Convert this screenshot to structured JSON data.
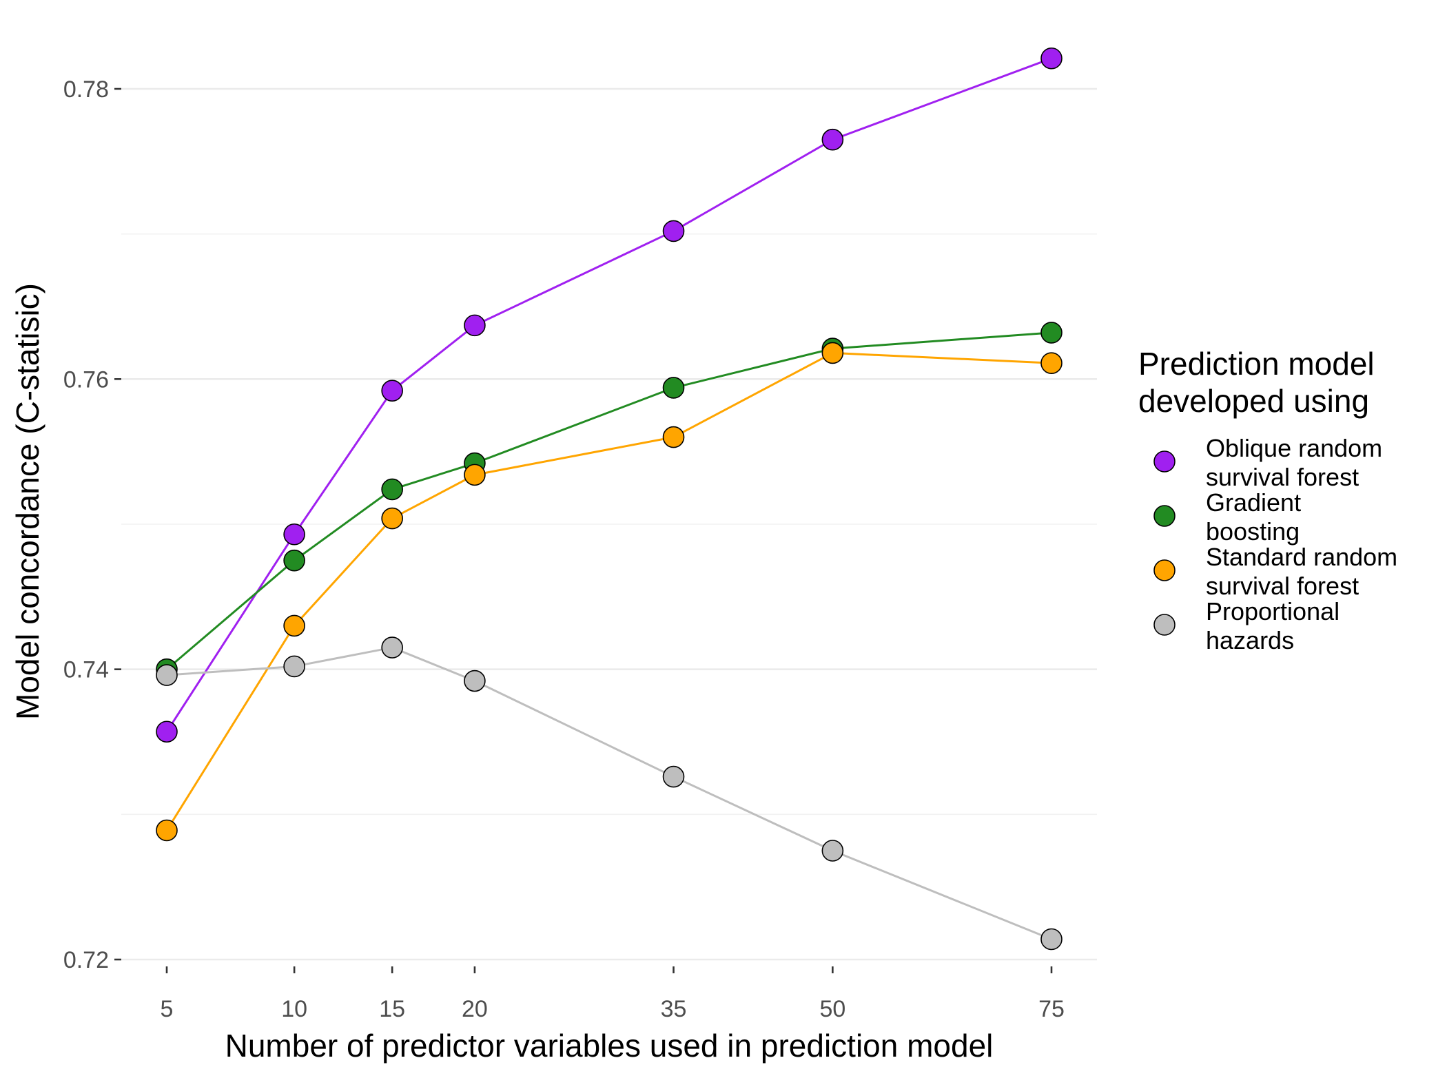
{
  "chart_data": {
    "type": "line",
    "title": "",
    "xlabel": "Number of predictor variables used in prediction model",
    "ylabel": "Model concordance (C-statisic)",
    "x": [
      5,
      10,
      15,
      20,
      35,
      50,
      75
    ],
    "x_tick_labels": [
      "5",
      "10",
      "15",
      "20",
      "35",
      "50",
      "75"
    ],
    "x_scale": "sqrt",
    "y_ticks": [
      0.72,
      0.74,
      0.76,
      0.78
    ],
    "y_tick_labels": [
      "0.72",
      "0.74",
      "0.76",
      "0.78"
    ],
    "ylim": [
      0.7175,
      0.7835
    ],
    "grid": "horizontal",
    "legend": {
      "title": "Prediction model developed using",
      "title_lines": [
        "Prediction model",
        "developed using"
      ],
      "placement": "right"
    },
    "series": [
      {
        "name": "Oblique random survival forest",
        "label_lines": [
          "Oblique random",
          "survival forest"
        ],
        "color": "#a020f0",
        "values": [
          0.7357,
          0.7493,
          0.7592,
          0.7637,
          0.7702,
          0.7765,
          0.7821
        ]
      },
      {
        "name": "Gradient boosting",
        "label_lines": [
          "Gradient",
          "boosting"
        ],
        "color": "#228b22",
        "values": [
          0.74,
          0.7475,
          0.7524,
          0.7542,
          0.7594,
          0.7621,
          0.7632
        ]
      },
      {
        "name": "Standard random survival forest",
        "label_lines": [
          "Standard random",
          "survival forest"
        ],
        "color": "#ffa500",
        "values": [
          0.7289,
          0.743,
          0.7504,
          0.7534,
          0.756,
          0.7618,
          0.7611
        ]
      },
      {
        "name": "Proportional hazards",
        "label_lines": [
          "Proportional",
          "hazards"
        ],
        "color": "#bebebe",
        "values": [
          0.7396,
          0.7402,
          0.7415,
          0.7392,
          0.7326,
          0.7275,
          0.7214
        ]
      }
    ]
  }
}
